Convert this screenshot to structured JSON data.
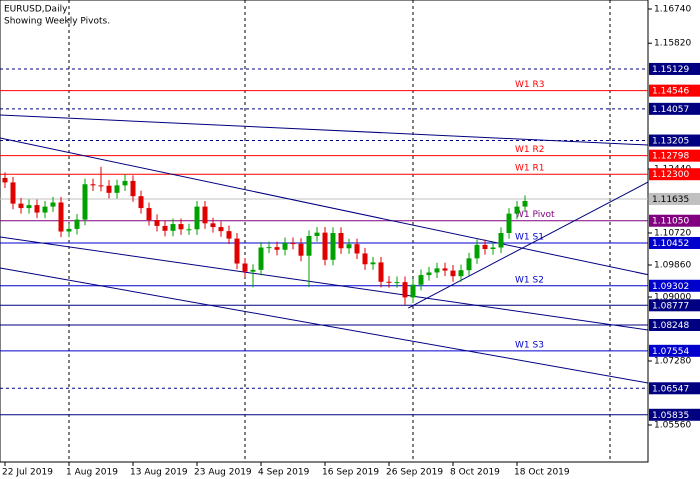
{
  "chart_data": {
    "type": "candlestick",
    "title": "EURUSD,Daily",
    "subtitle": "Showing Weekly Pivots.",
    "up_color": "#00a000",
    "down_color": "#e00000",
    "ylim": [
      1.04566,
      1.16982
    ],
    "yticks": [
      {
        "value": 1.1674,
        "label": "1.16740"
      },
      {
        "value": 1.1582,
        "label": "1.15820"
      },
      {
        "value": 1.1244,
        "label": "1.12440"
      },
      {
        "value": 1.1072,
        "label": "1.10720"
      },
      {
        "value": 1.0986,
        "label": "1.09860"
      },
      {
        "value": 1.09,
        "label": "1.09000"
      },
      {
        "value": 1.0728,
        "label": "1.07280"
      },
      {
        "value": 1.0556,
        "label": "1.05560"
      }
    ],
    "categories": [
      "22 Jul 2019",
      null,
      null,
      null,
      null,
      null,
      null,
      null,
      "1 Aug 2019",
      null,
      null,
      null,
      null,
      null,
      null,
      null,
      "13 Aug 2019",
      null,
      null,
      null,
      null,
      null,
      null,
      null,
      "23 Aug 2019",
      null,
      null,
      null,
      null,
      null,
      null,
      null,
      "4 Sep 2019",
      null,
      null,
      null,
      null,
      null,
      null,
      null,
      "16 Sep 2019",
      null,
      null,
      null,
      null,
      null,
      null,
      null,
      "26 Sep 2019",
      null,
      null,
      null,
      null,
      null,
      null,
      null,
      "8 Oct 2019",
      null,
      null,
      null,
      null,
      null,
      null,
      null,
      "18 Oct 2019",
      null
    ],
    "open": [
      1.122,
      1.1208,
      1.1151,
      1.1139,
      1.1147,
      1.1127,
      1.1143,
      1.1154,
      1.1076,
      1.1083,
      1.1108,
      1.1203,
      1.12,
      1.1199,
      1.118,
      1.12,
      1.1212,
      1.1171,
      1.1139,
      1.1107,
      1.1091,
      1.1078,
      1.1096,
      1.1082,
      1.1082,
      1.1143,
      1.1098,
      1.1088,
      1.1077,
      1.1057,
      1.099,
      1.0968,
      1.0973,
      1.1033,
      1.1034,
      1.1027,
      1.1045,
      1.1043,
      1.1011,
      1.1064,
      1.1073,
      1.1,
      1.1072,
      1.1031,
      1.1042,
      1.1017,
      1.0988,
      1.0993,
      1.0941,
      1.094,
      1.094,
      1.0899,
      1.0933,
      1.0959,
      1.0966,
      1.0977,
      1.0971,
      1.0956,
      1.0972,
      1.1004,
      1.104,
      1.1029,
      1.1033,
      1.1072,
      1.1124,
      1.1143
    ],
    "high": [
      1.1235,
      1.1223,
      1.1166,
      1.1162,
      1.1162,
      1.1158,
      1.1169,
      1.1169,
      1.1098,
      1.1123,
      1.1218,
      1.1218,
      1.125,
      1.1214,
      1.1215,
      1.123,
      1.1227,
      1.1186,
      1.1154,
      1.1122,
      1.1106,
      1.1111,
      1.1111,
      1.1097,
      1.1158,
      1.1158,
      1.1113,
      1.1103,
      1.1092,
      1.1072,
      1.1005,
      1.0988,
      1.1048,
      1.1049,
      1.1049,
      1.106,
      1.106,
      1.1058,
      1.1079,
      1.1088,
      1.1088,
      1.1087,
      1.1087,
      1.1057,
      1.1057,
      1.1032,
      1.1008,
      1.1008,
      1.0956,
      1.0955,
      1.0955,
      1.0948,
      1.0974,
      1.0981,
      1.0992,
      1.0992,
      1.0986,
      1.0987,
      1.1019,
      1.1055,
      1.1055,
      1.1048,
      1.1087,
      1.1139,
      1.1158,
      1.1173
    ],
    "low": [
      1.1193,
      1.1136,
      1.1124,
      1.1124,
      1.1112,
      1.1112,
      1.1128,
      1.1061,
      1.1061,
      1.1068,
      1.1093,
      1.1185,
      1.1184,
      1.1165,
      1.1165,
      1.1185,
      1.1156,
      1.1124,
      1.1092,
      1.1076,
      1.1063,
      1.1063,
      1.1067,
      1.1067,
      1.1067,
      1.1083,
      1.1073,
      1.1062,
      1.1042,
      1.0975,
      1.0953,
      1.0926,
      1.0958,
      1.1018,
      1.1012,
      1.1012,
      1.1028,
      1.0996,
      1.0927,
      1.1049,
      1.0985,
      1.0985,
      1.1016,
      1.1016,
      1.1002,
      1.0973,
      1.0973,
      1.0926,
      1.0925,
      1.0925,
      1.0879,
      1.0884,
      1.0918,
      1.0944,
      1.0951,
      1.0956,
      1.0941,
      1.0941,
      1.0957,
      1.0989,
      1.1014,
      1.1014,
      1.1018,
      1.1057,
      1.1109,
      1.1128
    ],
    "close": [
      1.1208,
      1.1151,
      1.1139,
      1.1147,
      1.1127,
      1.1143,
      1.1154,
      1.1076,
      1.1083,
      1.1108,
      1.1203,
      1.12,
      1.1199,
      1.118,
      1.12,
      1.1212,
      1.1171,
      1.1139,
      1.1107,
      1.1091,
      1.1078,
      1.1096,
      1.1082,
      1.1082,
      1.1143,
      1.1098,
      1.1088,
      1.1077,
      1.1057,
      1.099,
      1.0968,
      1.0973,
      1.1033,
      1.1034,
      1.1027,
      1.1045,
      1.1043,
      1.1011,
      1.1064,
      1.1073,
      1.1,
      1.1072,
      1.1031,
      1.1042,
      1.1017,
      1.0988,
      1.0993,
      1.0941,
      1.094,
      1.094,
      1.0899,
      1.0933,
      1.0959,
      1.0966,
      1.0977,
      1.0971,
      1.0956,
      1.0972,
      1.1004,
      1.104,
      1.1029,
      1.1033,
      1.1072,
      1.1124,
      1.1143,
      1.1158
    ],
    "levels": [
      {
        "value": 1.15129,
        "label": "1.15129",
        "color": "#000080",
        "style": "dashed"
      },
      {
        "value": 1.14546,
        "label": "1.14546",
        "name": "W1  R3",
        "color": "#ff0000",
        "style": "solid"
      },
      {
        "value": 1.14057,
        "label": "1.14057",
        "color": "#000080",
        "style": "dashed"
      },
      {
        "value": 1.13205,
        "label": "1.13205",
        "color": "#000080",
        "style": "dashed"
      },
      {
        "value": 1.12798,
        "label": "1.12798",
        "name": "W1  R2",
        "color": "#ff0000",
        "style": "solid"
      },
      {
        "value": 1.123,
        "label": "1.12300",
        "name": "W1  R1",
        "color": "#ff0000",
        "style": "solid"
      },
      {
        "value": 1.11635,
        "label": "1.11635",
        "color": "#c0c0c0",
        "style": "solid"
      },
      {
        "value": 1.1105,
        "label": "1.11050",
        "name": "W1  Pivot",
        "color": "#800080",
        "style": "solid"
      },
      {
        "value": 1.10452,
        "label": "1.10452",
        "name": "W1  S1",
        "color": "#0000cd",
        "style": "solid"
      },
      {
        "value": 1.09302,
        "label": "1.09302",
        "name": "W1  S2",
        "color": "#0000cd",
        "style": "solid"
      },
      {
        "value": 1.08777,
        "label": "1.08777",
        "color": "#000080",
        "style": "solid"
      },
      {
        "value": 1.08248,
        "label": "1.08248",
        "color": "#000080",
        "style": "solid"
      },
      {
        "value": 1.07554,
        "label": "1.07554",
        "name": "W1  S3",
        "color": "#0000cd",
        "style": "solid"
      },
      {
        "value": 1.06547,
        "label": "1.06547",
        "color": "#000080",
        "style": "dashed"
      },
      {
        "value": 1.05835,
        "label": "1.05835",
        "color": "#000080",
        "style": "solid"
      }
    ],
    "trendlines": [
      {
        "x": [
          -0.6,
          80.6
        ],
        "y": [
          1.13273,
          1.0959
        ],
        "color": "#000080"
      },
      {
        "x": [
          -0.6,
          80.4
        ],
        "y": [
          1.13891,
          1.13085
        ],
        "color": "#000080"
      },
      {
        "x": [
          -0.6,
          80.4
        ],
        "y": [
          1.10613,
          1.08113
        ],
        "color": "#000080"
      },
      {
        "x": [
          -0.6,
          80.4
        ],
        "y": [
          1.0978,
          1.06689
        ],
        "color": "#000080"
      },
      {
        "x": [
          50.4,
          80.4
        ],
        "y": [
          1.08704,
          1.12091
        ],
        "color": "#000080"
      }
    ]
  }
}
